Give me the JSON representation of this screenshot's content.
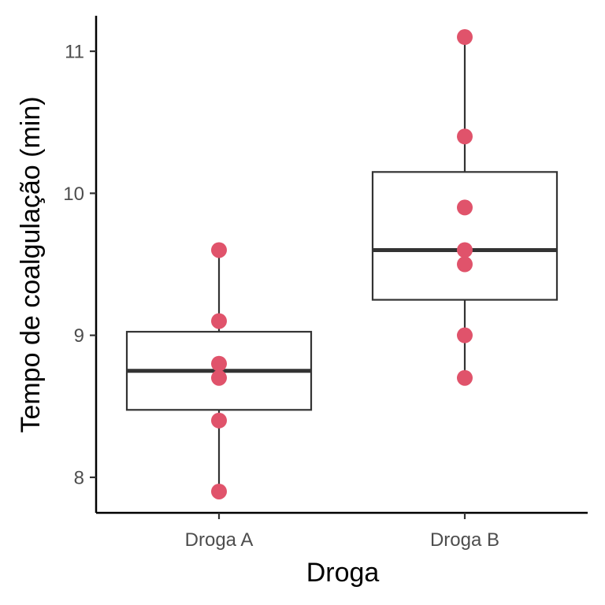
{
  "chart_data": {
    "type": "box",
    "xlabel": "Droga",
    "ylabel": "Tempo de coalgulação (min)",
    "ylim": [
      7.75,
      11.25
    ],
    "yticks": [
      8,
      9,
      10,
      11
    ],
    "categories": [
      "Droga A",
      "Droga B"
    ],
    "boxes": [
      {
        "category": "Droga A",
        "min": 7.9,
        "q1": 8.475,
        "median": 8.75,
        "q3": 9.025,
        "max": 9.6
      },
      {
        "category": "Droga B",
        "min": 8.7,
        "q1": 9.25,
        "median": 9.6,
        "q3": 10.15,
        "max": 11.1
      }
    ],
    "points": [
      {
        "category": "Droga A",
        "values": [
          7.9,
          8.4,
          8.7,
          8.8,
          9.1,
          9.6
        ]
      },
      {
        "category": "Droga B",
        "values": [
          8.7,
          9.0,
          9.5,
          9.6,
          9.9,
          10.4,
          11.1
        ]
      }
    ],
    "grid": false,
    "colors": {
      "points": "#E0536B",
      "box": "#333333",
      "axis": "#000000"
    }
  }
}
